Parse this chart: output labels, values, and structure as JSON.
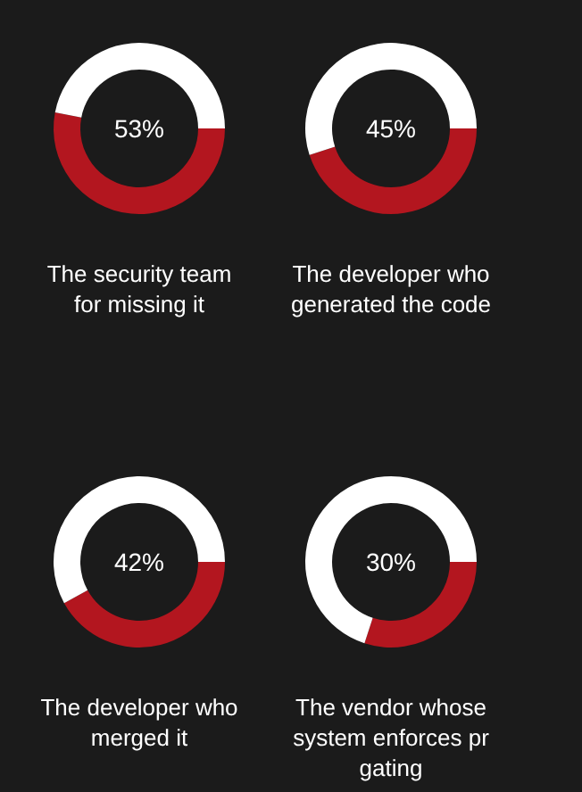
{
  "chart_data": [
    {
      "type": "donut",
      "title": "The security team for missing it",
      "categories": [
        null,
        null
      ],
      "values": [
        53,
        47
      ],
      "colors": [
        "#b3161f",
        "#ffffff"
      ],
      "annotations": [
        "53%"
      ]
    },
    {
      "type": "donut",
      "title": "The developer who generated the code",
      "categories": [
        null,
        null
      ],
      "values": [
        45,
        55
      ],
      "colors": [
        "#b3161f",
        "#ffffff"
      ],
      "annotations": [
        "45%"
      ]
    },
    {
      "type": "donut",
      "title": "The developer who merged it",
      "categories": [
        null,
        null
      ],
      "values": [
        42,
        58
      ],
      "colors": [
        "#b3161f",
        "#ffffff"
      ],
      "annotations": [
        "42%"
      ]
    },
    {
      "type": "donut",
      "title": "The vendor whose system enforces pr gating",
      "categories": [
        null,
        null
      ],
      "values": [
        30,
        70
      ],
      "colors": [
        "#b3161f",
        "#ffffff"
      ],
      "annotations": [
        "30%"
      ]
    }
  ]
}
